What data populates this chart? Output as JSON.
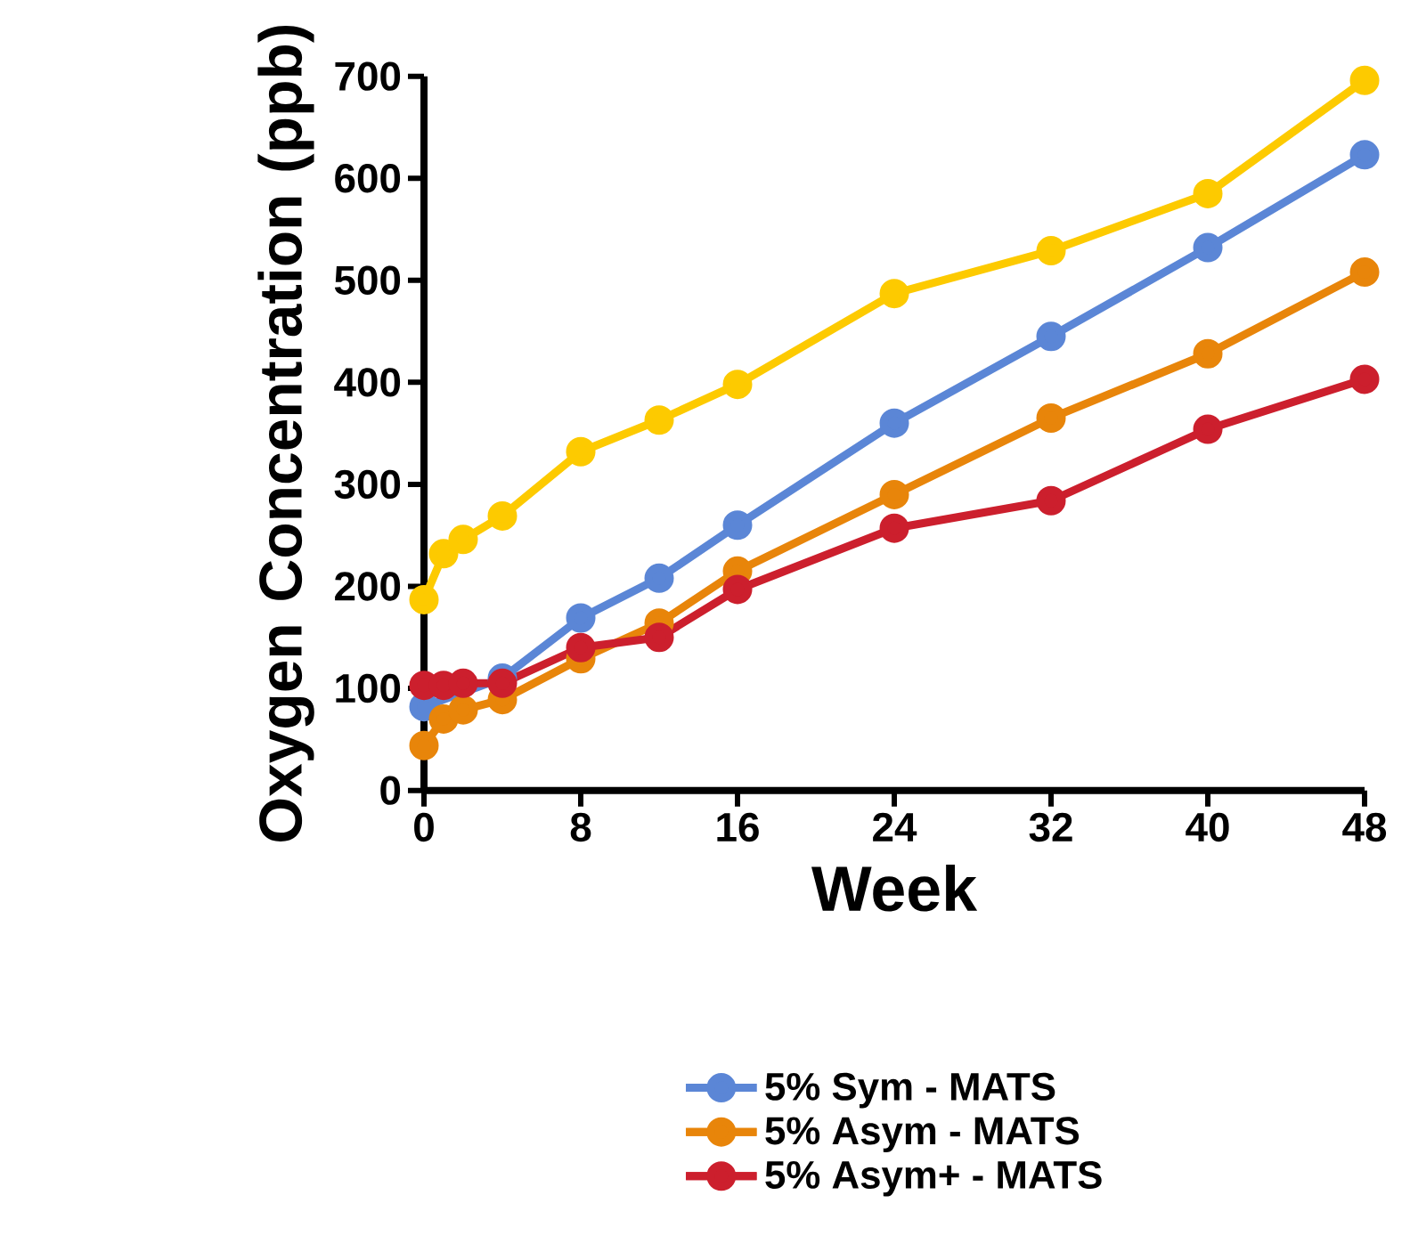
{
  "chart_data": {
    "type": "line",
    "xlabel": "Week",
    "ylabel": "Oxygen Concentration (ppb)",
    "x": [
      0,
      1,
      2,
      4,
      8,
      12,
      16,
      24,
      32,
      40,
      48
    ],
    "series": [
      {
        "name": "5% Sym - MATS",
        "color": "#5b86d6",
        "values": [
          82,
          null,
          null,
          110,
          169,
          208,
          260,
          360,
          445,
          532,
          623
        ]
      },
      {
        "name": "5% Asym - MATS",
        "color": "#e8850a",
        "values": [
          44,
          70,
          79,
          89,
          129,
          164,
          215,
          290,
          365,
          428,
          508
        ]
      },
      {
        "name": "5% Asym+ - MATS",
        "color": "#cc1f2d",
        "values": [
          103,
          103,
          105,
          105,
          140,
          150,
          197,
          257,
          284,
          354,
          403
        ]
      },
      {
        "color": "#fdca00",
        "values": [
          187,
          232,
          246,
          269,
          332,
          363,
          398,
          487,
          529,
          585,
          696
        ]
      }
    ],
    "xlim": [
      0,
      48
    ],
    "ylim": [
      0,
      700
    ],
    "xticks": [
      0,
      8,
      16,
      24,
      32,
      40,
      48
    ],
    "yticks": [
      0,
      100,
      200,
      300,
      400,
      500,
      600,
      700
    ],
    "legend": "bottom",
    "marker": "circle",
    "line_style": "solid",
    "grid": false
  }
}
